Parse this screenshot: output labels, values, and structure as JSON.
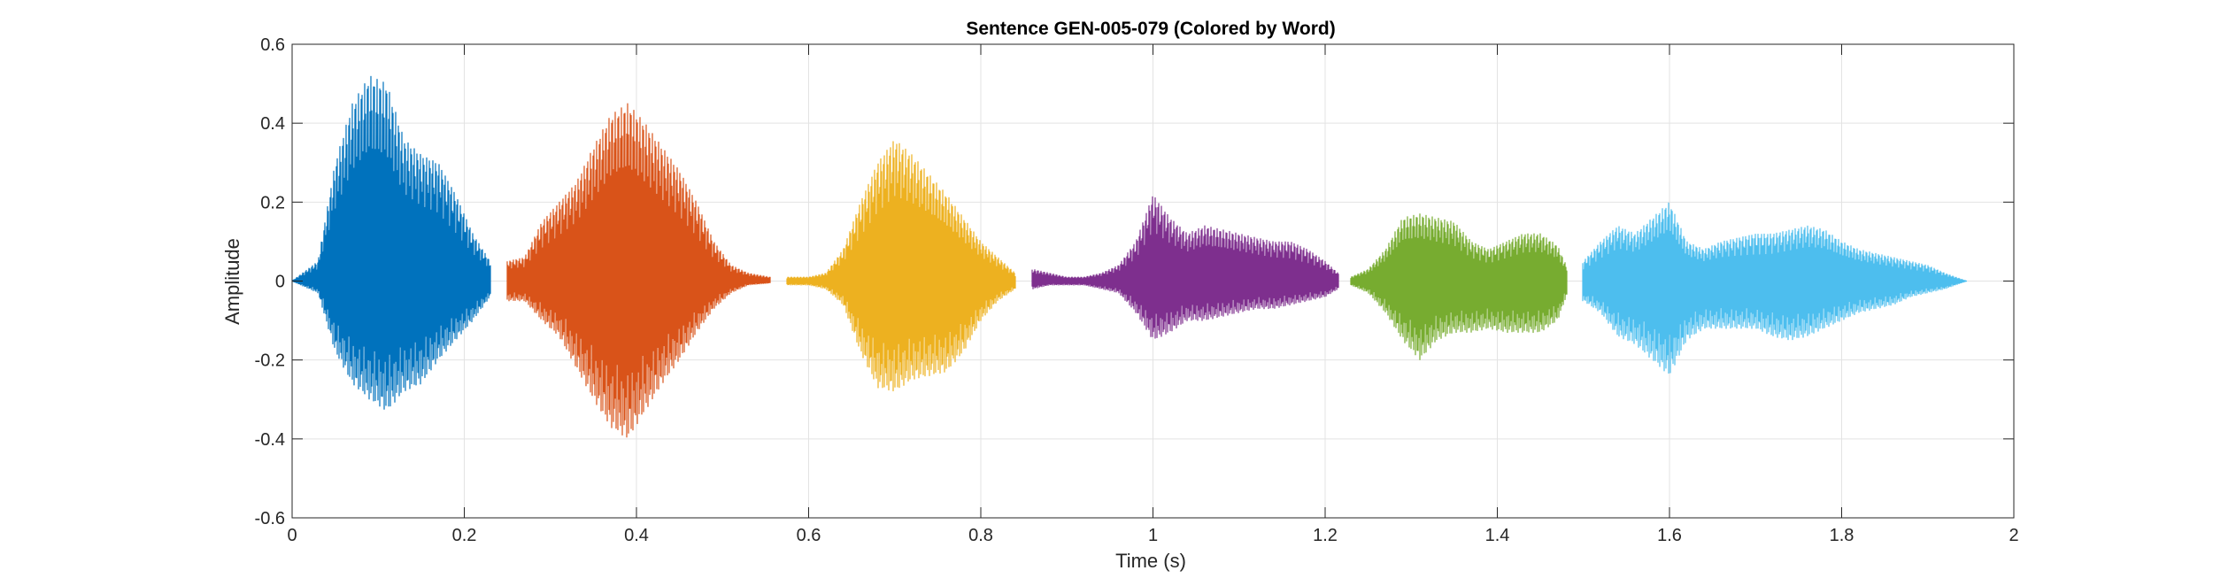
{
  "chart_data": {
    "type": "line",
    "title": "Sentence GEN-005-079 (Colored by Word)",
    "xlabel": "Time (s)",
    "ylabel": "Amplitude",
    "xlim": [
      0,
      2
    ],
    "ylim": [
      -0.6,
      0.6
    ],
    "x_ticks": [
      0,
      0.2,
      0.4,
      0.6,
      0.8,
      1,
      1.2,
      1.4,
      1.6,
      1.8,
      2
    ],
    "x_tick_labels": [
      "0",
      "0.2",
      "0.4",
      "0.6",
      "0.8",
      "1",
      "1.2",
      "1.4",
      "1.6",
      "1.8",
      "2"
    ],
    "y_ticks": [
      -0.6,
      -0.4,
      -0.2,
      0,
      0.2,
      0.4,
      0.6
    ],
    "y_tick_labels": [
      "-0.6",
      "-0.4",
      "-0.2",
      "0",
      "0.2",
      "0.4",
      "0.6"
    ],
    "grid": true,
    "legend": "none",
    "series": [
      {
        "color": "#0072BD",
        "x": [
          0.0,
          0.03,
          0.05,
          0.07,
          0.09,
          0.11,
          0.13,
          0.15,
          0.17,
          0.19,
          0.21,
          0.23
        ],
        "envelope_pos": [
          0.0,
          0.05,
          0.3,
          0.45,
          0.52,
          0.5,
          0.36,
          0.32,
          0.3,
          0.22,
          0.12,
          0.05
        ],
        "envelope_neg": [
          0.0,
          -0.03,
          -0.18,
          -0.26,
          -0.3,
          -0.33,
          -0.28,
          -0.26,
          -0.2,
          -0.15,
          -0.1,
          -0.04
        ]
      },
      {
        "color": "#D95319",
        "x": [
          0.25,
          0.27,
          0.29,
          0.31,
          0.33,
          0.35,
          0.37,
          0.39,
          0.41,
          0.43,
          0.45,
          0.47,
          0.49,
          0.51,
          0.53,
          0.555
        ],
        "envelope_pos": [
          0.05,
          0.06,
          0.15,
          0.2,
          0.25,
          0.34,
          0.42,
          0.45,
          0.4,
          0.34,
          0.28,
          0.2,
          0.1,
          0.04,
          0.02,
          0.01
        ],
        "envelope_neg": [
          -0.05,
          -0.05,
          -0.1,
          -0.14,
          -0.22,
          -0.3,
          -0.37,
          -0.4,
          -0.33,
          -0.26,
          -0.2,
          -0.13,
          -0.07,
          -0.03,
          -0.01,
          -0.005
        ]
      },
      {
        "color": "#EDB120",
        "x": [
          0.575,
          0.6,
          0.62,
          0.64,
          0.66,
          0.68,
          0.7,
          0.72,
          0.74,
          0.76,
          0.78,
          0.8,
          0.82,
          0.84
        ],
        "envelope_pos": [
          0.01,
          0.01,
          0.02,
          0.08,
          0.2,
          0.3,
          0.36,
          0.32,
          0.27,
          0.22,
          0.16,
          0.1,
          0.06,
          0.02
        ],
        "envelope_neg": [
          -0.01,
          -0.01,
          -0.02,
          -0.06,
          -0.18,
          -0.27,
          -0.28,
          -0.25,
          -0.24,
          -0.23,
          -0.18,
          -0.1,
          -0.05,
          -0.02
        ]
      },
      {
        "color": "#7E2F8E",
        "x": [
          0.86,
          0.88,
          0.9,
          0.92,
          0.94,
          0.96,
          0.98,
          1.0,
          1.02,
          1.04,
          1.06,
          1.08,
          1.1,
          1.12,
          1.14,
          1.16,
          1.18,
          1.2,
          1.215
        ],
        "envelope_pos": [
          0.03,
          0.02,
          0.01,
          0.01,
          0.02,
          0.04,
          0.1,
          0.22,
          0.16,
          0.12,
          0.14,
          0.13,
          0.12,
          0.11,
          0.1,
          0.1,
          0.08,
          0.05,
          0.02
        ],
        "envelope_neg": [
          -0.02,
          -0.01,
          -0.01,
          -0.01,
          -0.02,
          -0.03,
          -0.08,
          -0.15,
          -0.13,
          -0.1,
          -0.1,
          -0.09,
          -0.08,
          -0.07,
          -0.07,
          -0.06,
          -0.05,
          -0.04,
          -0.02
        ]
      },
      {
        "color": "#77AC30",
        "x": [
          1.23,
          1.25,
          1.27,
          1.29,
          1.31,
          1.33,
          1.35,
          1.37,
          1.39,
          1.41,
          1.43,
          1.45,
          1.47,
          1.48
        ],
        "envelope_pos": [
          0.01,
          0.03,
          0.08,
          0.16,
          0.17,
          0.16,
          0.15,
          0.1,
          0.08,
          0.1,
          0.12,
          0.12,
          0.09,
          0.04
        ],
        "envelope_neg": [
          -0.01,
          -0.03,
          -0.08,
          -0.15,
          -0.2,
          -0.15,
          -0.13,
          -0.13,
          -0.12,
          -0.13,
          -0.13,
          -0.13,
          -0.1,
          -0.04
        ]
      },
      {
        "color": "#4DBEEE",
        "x": [
          1.5,
          1.52,
          1.54,
          1.56,
          1.58,
          1.6,
          1.62,
          1.64,
          1.66,
          1.68,
          1.7,
          1.72,
          1.74,
          1.76,
          1.78,
          1.8,
          1.82,
          1.84,
          1.86,
          1.88,
          1.9,
          1.92,
          1.945
        ],
        "envelope_pos": [
          0.05,
          0.1,
          0.14,
          0.12,
          0.16,
          0.2,
          0.1,
          0.08,
          0.1,
          0.11,
          0.12,
          0.12,
          0.13,
          0.14,
          0.13,
          0.1,
          0.08,
          0.07,
          0.06,
          0.05,
          0.04,
          0.02,
          0.0
        ],
        "envelope_neg": [
          -0.05,
          -0.08,
          -0.14,
          -0.16,
          -0.2,
          -0.24,
          -0.15,
          -0.12,
          -0.12,
          -0.12,
          -0.12,
          -0.14,
          -0.15,
          -0.14,
          -0.12,
          -0.1,
          -0.08,
          -0.07,
          -0.06,
          -0.04,
          -0.03,
          -0.02,
          0.0
        ]
      }
    ]
  }
}
